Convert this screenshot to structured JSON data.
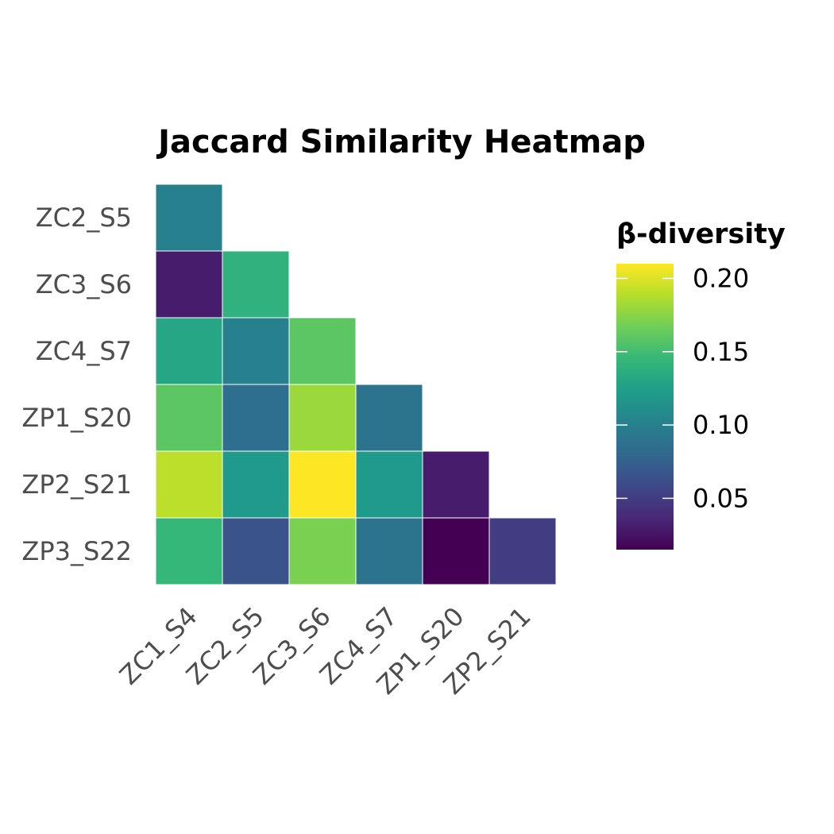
{
  "chart_data": {
    "type": "heatmap",
    "title": "Jaccard Similarity Heatmap",
    "xlabel": "",
    "ylabel": "",
    "x_categories": [
      "ZC1_S4",
      "ZC2_S5",
      "ZC3_S6",
      "ZC4_S7",
      "ZP1_S20",
      "ZP2_S21"
    ],
    "y_categories": [
      "ZC2_S5",
      "ZC3_S6",
      "ZC4_S7",
      "ZP1_S20",
      "ZP2_S21",
      "ZP3_S22"
    ],
    "cells": [
      {
        "x": "ZC1_S4",
        "y": "ZC2_S5",
        "value": 0.1
      },
      {
        "x": "ZC1_S4",
        "y": "ZC3_S6",
        "value": 0.03
      },
      {
        "x": "ZC2_S5",
        "y": "ZC3_S6",
        "value": 0.14
      },
      {
        "x": "ZC1_S4",
        "y": "ZC4_S7",
        "value": 0.13
      },
      {
        "x": "ZC2_S5",
        "y": "ZC4_S7",
        "value": 0.1
      },
      {
        "x": "ZC3_S6",
        "y": "ZC4_S7",
        "value": 0.16
      },
      {
        "x": "ZC1_S4",
        "y": "ZP1_S20",
        "value": 0.16
      },
      {
        "x": "ZC2_S5",
        "y": "ZP1_S20",
        "value": 0.085
      },
      {
        "x": "ZC3_S6",
        "y": "ZP1_S20",
        "value": 0.18
      },
      {
        "x": "ZC4_S7",
        "y": "ZP1_S20",
        "value": 0.09
      },
      {
        "x": "ZC1_S4",
        "y": "ZP2_S21",
        "value": 0.19
      },
      {
        "x": "ZC2_S5",
        "y": "ZP2_S21",
        "value": 0.12
      },
      {
        "x": "ZC3_S6",
        "y": "ZP2_S21",
        "value": 0.21
      },
      {
        "x": "ZC4_S7",
        "y": "ZP2_S21",
        "value": 0.12
      },
      {
        "x": "ZP1_S20",
        "y": "ZP2_S21",
        "value": 0.03
      },
      {
        "x": "ZC1_S4",
        "y": "ZP3_S22",
        "value": 0.145
      },
      {
        "x": "ZC2_S5",
        "y": "ZP3_S22",
        "value": 0.065
      },
      {
        "x": "ZC3_S6",
        "y": "ZP3_S22",
        "value": 0.17
      },
      {
        "x": "ZC4_S7",
        "y": "ZP3_S22",
        "value": 0.09
      },
      {
        "x": "ZP1_S20",
        "y": "ZP3_S22",
        "value": 0.015
      },
      {
        "x": "ZP2_S21",
        "y": "ZP3_S22",
        "value": 0.05
      }
    ],
    "color_scale": {
      "name": "viridis",
      "stops": [
        "#440154",
        "#482878",
        "#3e4989",
        "#31688e",
        "#26828e",
        "#1f9e89",
        "#35b779",
        "#6ece58",
        "#b5de2b",
        "#fde725"
      ],
      "domain": [
        0.015,
        0.21
      ]
    },
    "legend": {
      "title": "β-diversity",
      "ticks": [
        0.05,
        0.1,
        0.15,
        0.2
      ],
      "tick_labels": [
        "0.05",
        "0.10",
        "0.15",
        "0.20"
      ],
      "position": "right"
    },
    "grid": false
  }
}
